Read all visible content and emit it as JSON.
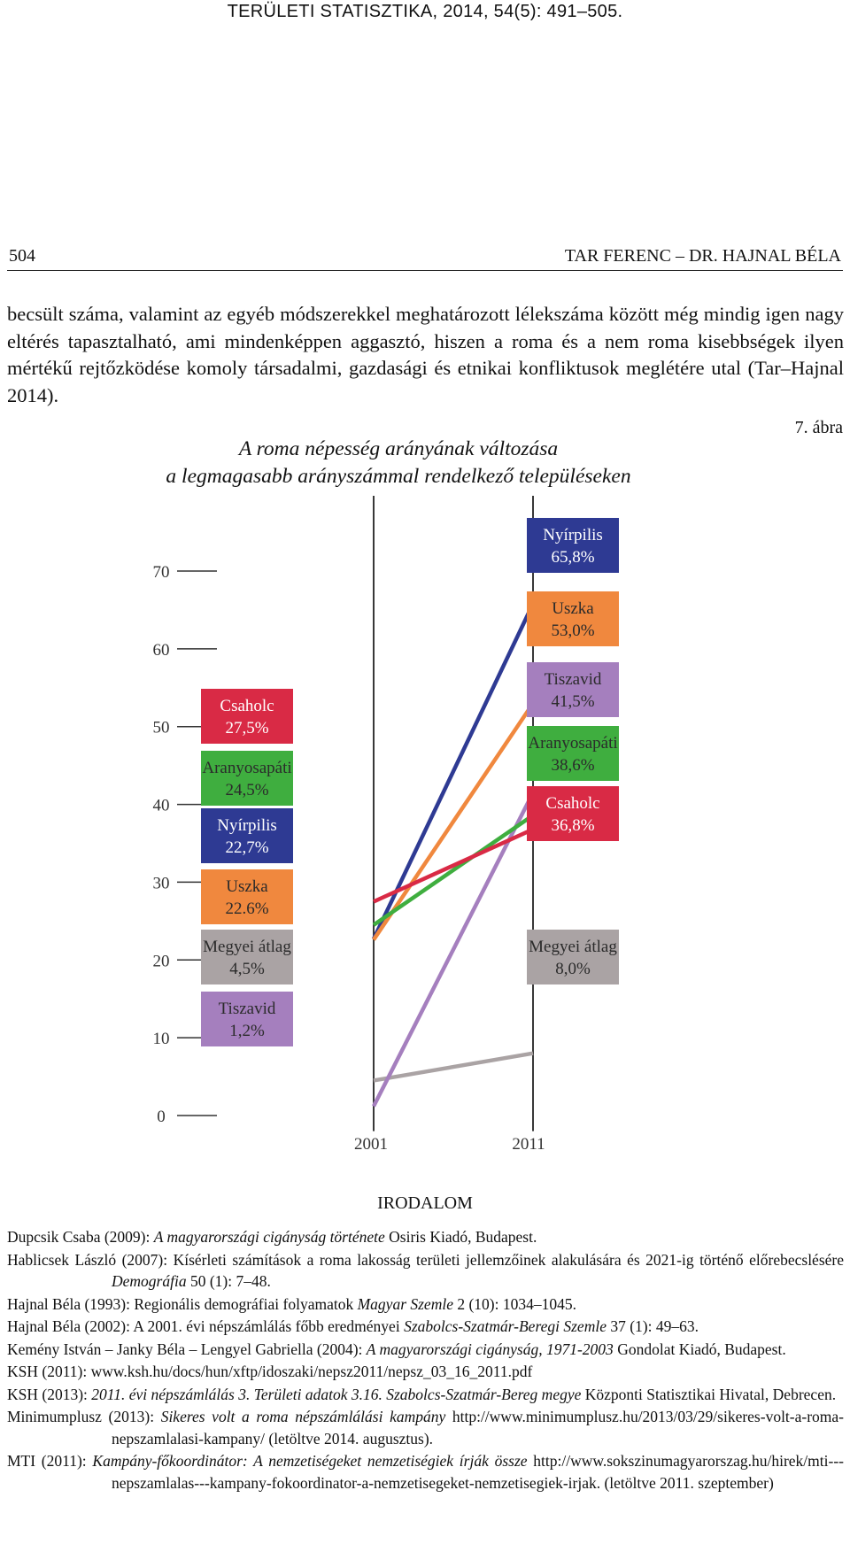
{
  "journal_header": "TERÜLETI STATISZTIKA, 2014, 54(5): 491–505.",
  "running_head": {
    "page": "504",
    "authors": "TAR FERENC – DR. HAJNAL BÉLA"
  },
  "body_text": "becsült száma, valamint az egyéb módszerekkel meghatározott lélekszáma között még mindig igen nagy eltérés tapasztalható, ami mindenképpen aggasztó, hiszen a roma és a nem roma kisebbségek ilyen mértékű rejtőzködése komoly társadalmi, gazdasági és etnikai konfliktusok meglétére utal (Tar–Hajnal 2014).",
  "figure": {
    "label": "7. ábra",
    "title_line1": "A roma népesség arányának változása",
    "title_line2": "a legmagasabb arányszámmal rendelkező településeken"
  },
  "chart_data": {
    "type": "line",
    "ylabel": "%",
    "y_ticks": [
      "0",
      "10",
      "20",
      "30",
      "40",
      "50",
      "60",
      "70"
    ],
    "ylim": [
      0,
      70
    ],
    "x": [
      "2001",
      "2011"
    ],
    "grid": false,
    "series": [
      {
        "name": "Nyírpilis",
        "color": "#2e3a93",
        "values": [
          22.7,
          65.8
        ],
        "label_2001": "22,7%",
        "label_2011": "65,8%"
      },
      {
        "name": "Uszka",
        "color": "#f0883e",
        "values": [
          22.6,
          53.0
        ],
        "label_2001": "22.6%",
        "label_2011": "53,0%"
      },
      {
        "name": "Tiszavid",
        "color": "#a57fbe",
        "values": [
          1.2,
          41.5
        ],
        "label_2001": "1,2%",
        "label_2011": "41,5%"
      },
      {
        "name": "Aranyosapáti",
        "color": "#3fae3f",
        "values": [
          24.5,
          38.6
        ],
        "label_2001": "24,5%",
        "label_2011": "38,6%"
      },
      {
        "name": "Csaholc",
        "color": "#d92a45",
        "values": [
          27.5,
          36.8
        ],
        "label_2001": "27,5%",
        "label_2011": "36,8%"
      },
      {
        "name": "Megyei átlag",
        "color": "#aaa3a4",
        "values": [
          4.5,
          8.0
        ],
        "label_2001": "4,5%",
        "label_2011": "8,0%"
      }
    ],
    "left_boxes_order": [
      "Csaholc",
      "Aranyosapáti",
      "Nyírpilis",
      "Uszka",
      "Megyei átlag",
      "Tiszavid"
    ],
    "right_boxes_order": [
      "Nyírpilis",
      "Uszka",
      "Tiszavid",
      "Aranyosapáti",
      "Csaholc",
      "Megyei átlag"
    ]
  },
  "references_title": "IRODALOM",
  "references": [
    {
      "plain1": "Dupcsik Csaba (2009): ",
      "italic": "A magyarországi cigányság története",
      "plain2": " Osiris Kiadó, Budapest."
    },
    {
      "plain1": "Hablicsek László (2007): Kísérleti számítások a roma lakosság területi jellemzőinek alakulására és 2021-ig történő előrebecslésére ",
      "italic": "Demográfia",
      "plain2": " 50 (1): 7–48."
    },
    {
      "plain1": "Hajnal Béla (1993): Regionális demográfiai folyamatok ",
      "italic": "Magyar Szemle",
      "plain2": " 2 (10): 1034–1045."
    },
    {
      "plain1": "Hajnal Béla (2002): A 2001. évi népszámlálás főbb eredményei ",
      "italic": "Szabolcs-Szatmár-Beregi Szemle",
      "plain2": " 37 (1): 49–63."
    },
    {
      "plain1": "Kemény István – Janky Béla – Lengyel Gabriella (2004): ",
      "italic": "A magyarországi cigányság, 1971-2003",
      "plain2": " Gondolat Kiadó, Budapest."
    },
    {
      "plain1": "KSH (2011): www.ksh.hu/docs/hun/xftp/idoszaki/nepsz2011/nepsz_03_16_2011.pdf",
      "italic": "",
      "plain2": ""
    },
    {
      "plain1": "KSH (2013): ",
      "italic": "2011. évi népszámlálás 3. Területi adatok 3.16. Szabolcs-Szatmár-Bereg megye",
      "plain2": " Központi Statisztikai Hivatal, Debrecen."
    },
    {
      "plain1": "Minimumplusz (2013): ",
      "italic": "Sikeres volt a roma népszámlálási kampány",
      "plain2": " http://www.minimumplusz.hu/2013/03/29/sikeres-volt-a-roma-nepszamlalasi-kampany/ (letöltve 2014. augusztus)."
    },
    {
      "plain1": "MTI (2011): ",
      "italic": "Kampány-főkoordinátor: A nemzetiségeket nemzetiségiek írják össze",
      "plain2": " http://www.sokszinumagyarorszag.hu/hirek/mti---nepszamlalas---kampany-fokoordinator-a-nemzetisegeket-nemzetisegiek-irjak. (letöltve 2011. szeptember)"
    }
  ]
}
